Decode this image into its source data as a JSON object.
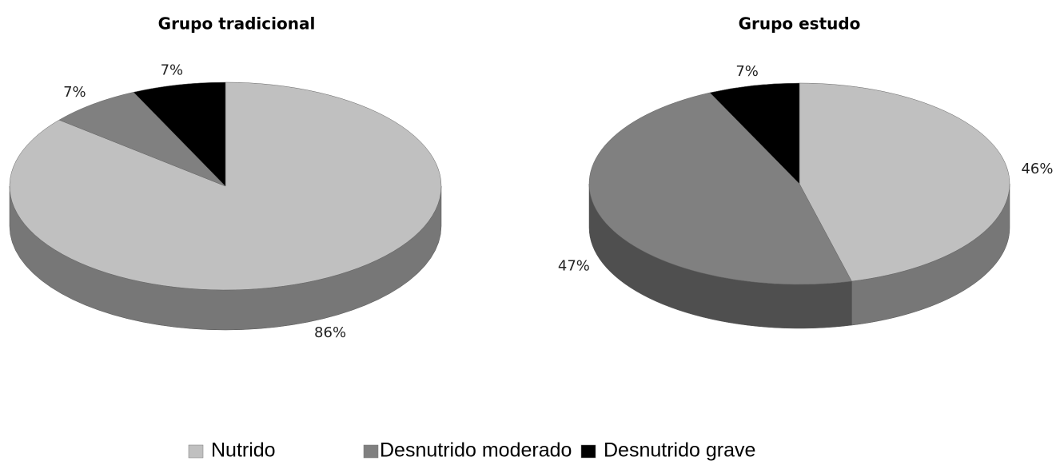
{
  "chart_data": [
    {
      "type": "pie",
      "title": "Grupo tradicional",
      "values": [
        86,
        7,
        7
      ],
      "value_labels": [
        "86%",
        "7%",
        "7%"
      ]
    },
    {
      "type": "pie",
      "title": "Grupo estudo",
      "values": [
        46,
        47,
        7
      ],
      "value_labels": [
        "46%",
        "47%",
        "7%"
      ]
    }
  ],
  "legend": {
    "labels": [
      "Nutrido",
      "Desnutrido moderado",
      "Desnutrido grave"
    ],
    "colors": [
      "#c0c0c0",
      "#808080",
      "#000000"
    ],
    "position": "bottom"
  }
}
